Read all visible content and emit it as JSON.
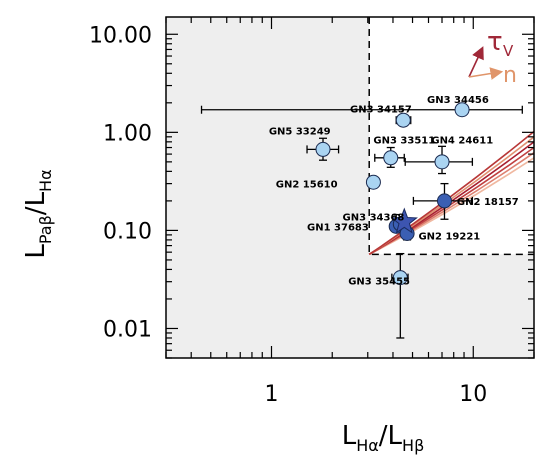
{
  "chart_data": {
    "type": "scatter",
    "xscale": "log",
    "yscale": "log",
    "xlim": [
      0.3,
      20
    ],
    "ylim": [
      0.005,
      15
    ],
    "xticks": [
      {
        "value": 1,
        "label": "1"
      },
      {
        "value": 10,
        "label": "10"
      }
    ],
    "yticks": [
      {
        "value": 0.01,
        "label": "0.01"
      },
      {
        "value": 0.1,
        "label": "0.10"
      },
      {
        "value": 1,
        "label": "1.00"
      },
      {
        "value": 10,
        "label": "10.00"
      }
    ],
    "xlabel": {
      "main": "L",
      "sub1": "Hα",
      "sep": "/L",
      "sub2": "Hβ"
    },
    "ylabel": {
      "main": "L",
      "sub1": "Paβ",
      "sep": "/L",
      "sub2": "Hα"
    },
    "shaded_region": {
      "x_min": 3.05,
      "y_min": 0.057,
      "fill": "#eeeeee"
    },
    "points": [
      {
        "name": "GN3 34456",
        "x": 8.8,
        "y": 1.7,
        "xlo": 0.45,
        "xhi": 17.5,
        "ylo": 1.55,
        "yhi": 1.85,
        "style": "light",
        "label_x": 5.9,
        "label_y": 2.2
      },
      {
        "name": "GN3 34157",
        "x": 4.5,
        "y": 1.33,
        "xlo": 4.15,
        "xhi": 4.9,
        "ylo": 1.2,
        "yhi": 1.5,
        "style": "light",
        "label_x": 2.45,
        "label_y": 1.75
      },
      {
        "name": "GN5 33249",
        "x": 1.8,
        "y": 0.67,
        "xlo": 1.5,
        "xhi": 2.15,
        "ylo": 0.52,
        "yhi": 0.87,
        "style": "light",
        "label_x": 0.97,
        "label_y": 1.05
      },
      {
        "name": "GN3 33511",
        "x": 3.9,
        "y": 0.55,
        "xlo": 3.25,
        "xhi": 4.55,
        "ylo": 0.44,
        "yhi": 0.7,
        "style": "light",
        "label_x": 3.2,
        "label_y": 0.85
      },
      {
        "name": "GN4 24611",
        "x": 7.0,
        "y": 0.5,
        "xlo": 4.6,
        "xhi": 9.9,
        "ylo": 0.38,
        "yhi": 0.72,
        "style": "light",
        "label_x": 6.2,
        "label_y": 0.85
      },
      {
        "name": "GN2 15610",
        "x": 3.2,
        "y": 0.31,
        "xlo": 3.08,
        "xhi": 3.32,
        "ylo": 0.28,
        "yhi": 0.34,
        "style": "light",
        "label_x": 1.05,
        "label_y": 0.3
      },
      {
        "name": "GN2 18157",
        "x": 7.2,
        "y": 0.2,
        "xlo": 5.05,
        "xhi": 9.9,
        "ylo": 0.13,
        "yhi": 0.3,
        "style": "dark",
        "label_x": 8.3,
        "label_y": 0.2
      },
      {
        "name": "GN3 34368",
        "x": 4.15,
        "y": 0.11,
        "xlo": 3.9,
        "xhi": 4.4,
        "ylo": 0.1,
        "yhi": 0.145,
        "style": "dark",
        "label_x": 2.25,
        "label_y": 0.138
      },
      {
        "name": "GN1 37683",
        "x": 4.35,
        "y": 0.116,
        "xlo": 4.15,
        "xhi": 4.55,
        "ylo": 0.105,
        "yhi": 0.128,
        "style": "dark",
        "label_x": 1.5,
        "label_y": 0.11
      },
      {
        "name": "GN2 19221",
        "x": 4.7,
        "y": 0.093,
        "xlo": 4.45,
        "xhi": 4.95,
        "ylo": 0.08,
        "yhi": 0.108,
        "style": "dark",
        "label_x": 5.35,
        "label_y": 0.089
      },
      {
        "name": "GN3 35455",
        "x": 4.35,
        "y": 0.033,
        "xlo": 3.95,
        "xhi": 4.75,
        "ylo": 0.008,
        "yhi": 0.058,
        "style": "light",
        "label_x": 2.4,
        "label_y": 0.031
      }
    ],
    "star": {
      "x": 4.55,
      "y": 0.122,
      "color": "#3d55b0"
    },
    "curves": {
      "start": {
        "x": 3.05,
        "y": 0.057
      },
      "colors": [
        "#f0b8a0",
        "#dd8070",
        "#c04040",
        "#a82030",
        "#e09070",
        "#b83838"
      ],
      "end_y": [
        0.55,
        0.62,
        0.7,
        0.8,
        0.9,
        1.02
      ]
    },
    "arrows": {
      "tau": {
        "label": "τ",
        "sub": "V",
        "color": "#a02838"
      },
      "n": {
        "label": "n",
        "color": "#e0956a"
      }
    },
    "colors": {
      "light": "#aad4f2",
      "dark": "#3b5fb3",
      "curve_mid": "#c04040"
    }
  }
}
